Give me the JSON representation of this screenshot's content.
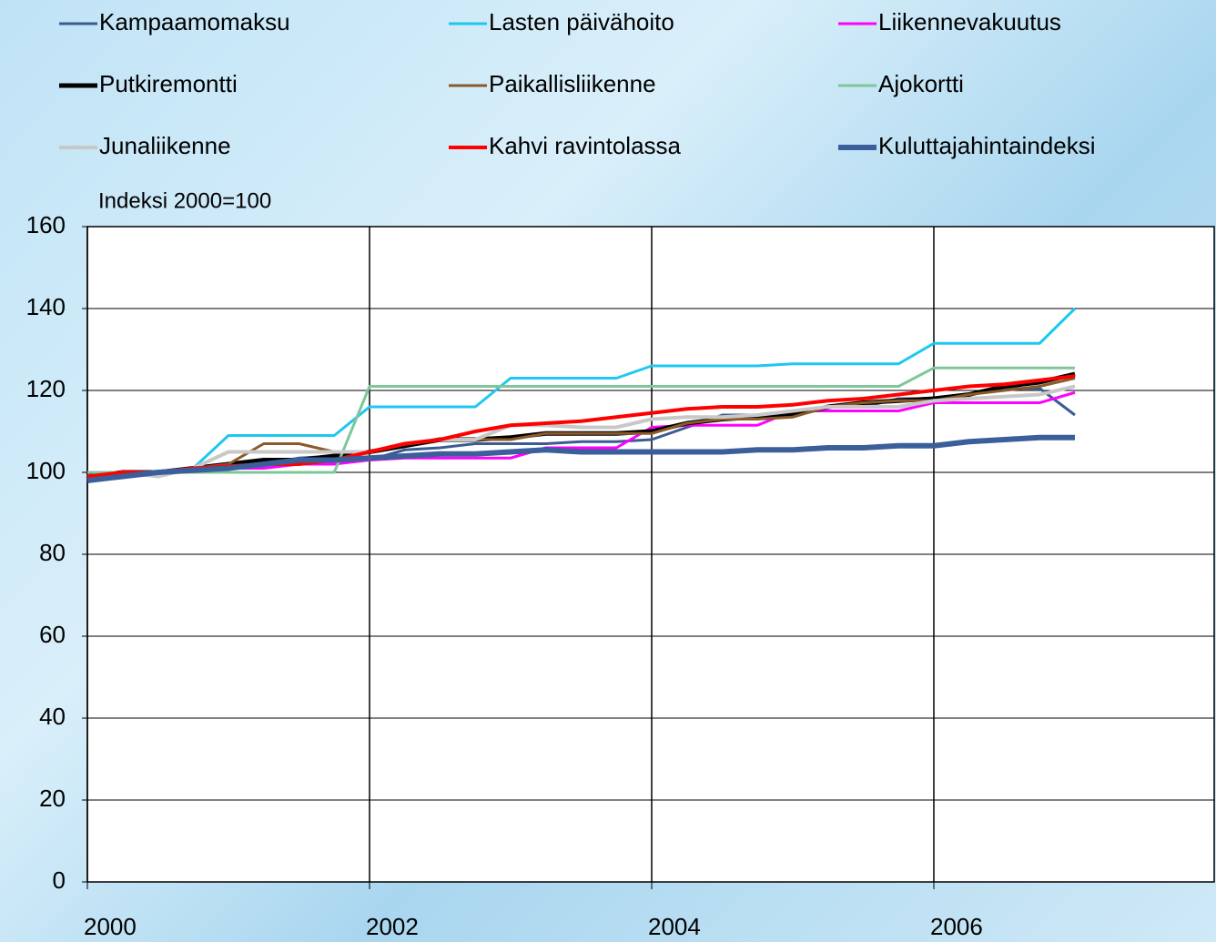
{
  "chart_data": {
    "type": "line",
    "y_label": "Indeksi 2000=100",
    "x": [
      2000,
      2000.25,
      2000.5,
      2000.75,
      2001,
      2001.25,
      2001.5,
      2001.75,
      2002,
      2002.25,
      2002.5,
      2002.75,
      2003,
      2003.25,
      2003.5,
      2003.75,
      2004,
      2004.25,
      2004.5,
      2004.75,
      2005,
      2005.25,
      2005.5,
      2005.75,
      2006,
      2006.25,
      2006.5,
      2006.75,
      2007
    ],
    "xlim": [
      2000,
      2008
    ],
    "xticks": [
      2000,
      2002,
      2004,
      2006
    ],
    "ylim": [
      0,
      160
    ],
    "yticks": [
      0,
      20,
      40,
      60,
      80,
      100,
      120,
      140,
      160
    ],
    "grid": true,
    "series": [
      {
        "name": "Kampaamomaksu",
        "color": "#3b5b93",
        "line_width": 3,
        "values": [
          98.5,
          99.5,
          100,
          101,
          101,
          102,
          103.5,
          104,
          103,
          105.5,
          106,
          107,
          107,
          107,
          107.5,
          107.5,
          108,
          111,
          114,
          114,
          114,
          116,
          116,
          118,
          118,
          119,
          120.5,
          120.5,
          114
        ]
      },
      {
        "name": "Lasten päivähoito",
        "color": "#1ec8f0",
        "line_width": 3,
        "values": [
          99,
          100,
          100,
          101,
          109,
          109,
          109,
          109,
          116,
          116,
          116,
          116,
          123,
          123,
          123,
          123,
          126,
          126,
          126,
          126,
          126.5,
          126.5,
          126.5,
          126.5,
          131.5,
          131.5,
          131.5,
          131.5,
          140
        ]
      },
      {
        "name": "Liikennevakuutus",
        "color": "#ff00ff",
        "line_width": 3,
        "values": [
          99,
          100,
          100,
          101,
          101,
          101,
          102,
          102,
          103,
          103.5,
          103.5,
          103.5,
          103.5,
          106,
          106,
          106,
          111,
          111.5,
          111.5,
          111.5,
          115,
          115,
          115,
          115,
          117,
          117,
          117,
          117,
          119.5
        ]
      },
      {
        "name": "Putkiremontti",
        "color": "#000000",
        "line_width": 5,
        "values": [
          99,
          100,
          100,
          101,
          102,
          103,
          103,
          104,
          105,
          106.5,
          108,
          108,
          108.5,
          109.5,
          109.5,
          109.5,
          110,
          112,
          113,
          113.5,
          114,
          116,
          117,
          117.5,
          118,
          119,
          121,
          122,
          124
        ]
      },
      {
        "name": "Paikallisliikenne",
        "color": "#8b5a2b",
        "line_width": 3,
        "values": [
          99,
          100,
          100,
          101,
          102,
          107,
          107,
          105,
          105,
          107,
          108,
          108,
          108,
          109.5,
          109.5,
          109.5,
          109.5,
          112,
          113,
          113,
          113.5,
          116,
          117,
          117.5,
          117.5,
          119,
          120,
          121,
          123
        ]
      },
      {
        "name": "Ajokortti",
        "color": "#7fc79a",
        "line_width": 3,
        "values": [
          100,
          100,
          100,
          100,
          100,
          100,
          100,
          100,
          121,
          121,
          121,
          121,
          121,
          121,
          121,
          121,
          121,
          121,
          121,
          121,
          121,
          121,
          121,
          121,
          125.5,
          125.5,
          125.5,
          125.5,
          125.5
        ]
      },
      {
        "name": "Junaliikenne",
        "color": "#c8c8c8",
        "line_width": 4,
        "values": [
          99,
          100,
          99,
          101,
          105,
          105,
          105,
          105,
          105,
          107,
          108,
          108,
          111.5,
          111.5,
          111,
          111,
          113,
          113.5,
          113.5,
          114,
          115,
          116,
          116,
          116,
          117.5,
          118,
          118.5,
          119,
          121
        ]
      },
      {
        "name": "Kahvi ravintolassa",
        "color": "#ff0000",
        "line_width": 4,
        "values": [
          99,
          100,
          100,
          101,
          101.5,
          102,
          102,
          103,
          105,
          107,
          108,
          110,
          111.5,
          112,
          112.5,
          113.5,
          114.5,
          115.5,
          116,
          116,
          116.5,
          117.5,
          118,
          119,
          120,
          121,
          121.5,
          122.5,
          123.5
        ]
      },
      {
        "name": "Kuluttajahintaindeksi",
        "color": "#3a5f9a",
        "line_width": 6,
        "values": [
          98,
          99,
          100,
          100.5,
          101,
          102,
          103,
          103,
          103.5,
          104,
          104.5,
          104.5,
          105,
          105.5,
          105,
          105,
          105,
          105,
          105,
          105.5,
          105.5,
          106,
          106,
          106.5,
          106.5,
          107.5,
          108,
          108.5,
          108.5
        ]
      }
    ]
  }
}
